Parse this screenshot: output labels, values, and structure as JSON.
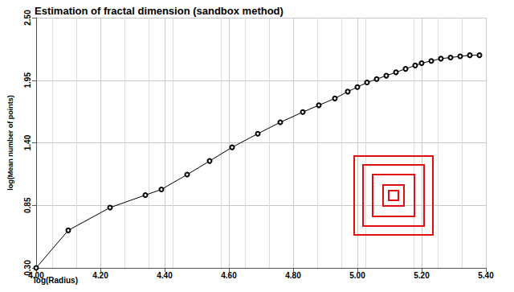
{
  "chart_data": {
    "type": "line",
    "title": "Estimation of fractal dimension (sandbox method)",
    "x_label": "log(Radius)",
    "y_label": "log(Mean number of points)",
    "x": [
      4.0,
      4.1,
      4.23,
      4.34,
      4.39,
      4.47,
      4.54,
      4.61,
      4.69,
      4.76,
      4.83,
      4.88,
      4.93,
      4.97,
      5.0,
      5.03,
      5.06,
      5.09,
      5.12,
      5.15,
      5.18,
      5.2,
      5.23,
      5.26,
      5.29,
      5.32,
      5.35,
      5.38
    ],
    "values": [
      0.3,
      0.63,
      0.83,
      0.94,
      0.99,
      1.12,
      1.24,
      1.36,
      1.48,
      1.58,
      1.67,
      1.73,
      1.79,
      1.85,
      1.89,
      1.93,
      1.96,
      1.99,
      2.02,
      2.05,
      2.08,
      2.1,
      2.12,
      2.14,
      2.15,
      2.16,
      2.17,
      2.17
    ],
    "color": "#000000",
    "marker": "circle",
    "xlim": [
      4.0,
      5.4
    ],
    "ylim": [
      0.3,
      2.5
    ],
    "xticks": [
      {
        "value": 4.0,
        "label": "4.00"
      },
      {
        "value": 4.2,
        "label": "4.20"
      },
      {
        "value": 4.4,
        "label": "4.40"
      },
      {
        "value": 4.6,
        "label": "4.60"
      },
      {
        "value": 4.8,
        "label": "4.80"
      },
      {
        "value": 5.0,
        "label": "5.00"
      },
      {
        "value": 5.2,
        "label": "5.20"
      },
      {
        "value": 5.4,
        "label": "5.40"
      }
    ],
    "yticks": [
      {
        "value": 0.3,
        "label": "0.30"
      },
      0.85,
      {
        "value": 1.4,
        "label": "1.40"
      },
      1.95,
      {
        "value": 2.5,
        "label": "2.50"
      }
    ],
    "grid": true
  }
}
